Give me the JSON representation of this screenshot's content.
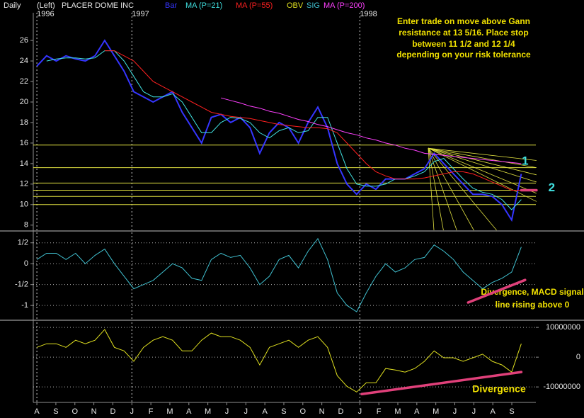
{
  "header": {
    "interval": "Daily",
    "scale": "(Left)",
    "symbol": "PLACER DOME INC"
  },
  "chart_data": [
    {
      "type": "line",
      "x": [
        0,
        0.51,
        1.02,
        1.53,
        2.04,
        2.55,
        3.06,
        3.57,
        4.08,
        4.59,
        5.1,
        5.61,
        6.12,
        6.63,
        7.14,
        7.65,
        8.16,
        8.67,
        9.18,
        9.69,
        10.2,
        10.71,
        11.22,
        11.73,
        12.24,
        12.75,
        13.26,
        13.77,
        14.28,
        14.79,
        15.3,
        15.81,
        16.32,
        16.83,
        17.34,
        17.85,
        18.36,
        18.87,
        19.38,
        19.89,
        20.4,
        20.91,
        21.42,
        21.93,
        22.44,
        22.95,
        23.46,
        23.97,
        24.48,
        24.99,
        25.5
      ],
      "xlim": [
        -0.19,
        28.8
      ],
      "ylim": [
        7.5,
        28.7
      ],
      "yticks": [
        8,
        10,
        12,
        14,
        16,
        18,
        20,
        22,
        24,
        26
      ],
      "year_markers": [
        {
          "value": 0,
          "label": "1996"
        },
        {
          "value": 5,
          "label": "1997"
        },
        {
          "value": 17,
          "label": "1998"
        }
      ],
      "series": [
        {
          "name": "Bar",
          "color": "#3535ff",
          "values": [
            23.5,
            24.5,
            24,
            24.5,
            24.2,
            24,
            24.5,
            26,
            24.5,
            23,
            21,
            20.5,
            20,
            20.5,
            21,
            19,
            17.5,
            16,
            18.5,
            18.8,
            18,
            18.5,
            17.5,
            15,
            17,
            18,
            17.5,
            16,
            18,
            19.5,
            17.5,
            14,
            12,
            11,
            12,
            11.5,
            12.5,
            12.5,
            12.5,
            13,
            13.5,
            15,
            14,
            13,
            12,
            11,
            11,
            10.8,
            10,
            8.5,
            13
          ]
        },
        {
          "name": "MA (P=21)",
          "color": "#40e0e0",
          "values": [
            null,
            24,
            24.2,
            24.3,
            24.3,
            24.2,
            24.3,
            25,
            25,
            24,
            22.5,
            21,
            20.5,
            20.5,
            20.8,
            20,
            18.5,
            17,
            17,
            18,
            18.5,
            18.4,
            18,
            17,
            16.5,
            17.2,
            17.5,
            17,
            17.2,
            18.5,
            18.5,
            16,
            13.5,
            12,
            11.8,
            11.8,
            12,
            12.5,
            12.5,
            12.8,
            13.2,
            14.2,
            14.5,
            13.5,
            12.5,
            11.6,
            11.2,
            11,
            10.5,
            9.5,
            10.5
          ]
        },
        {
          "name": "MA (P=55)",
          "color": "#ff2020",
          "values": [
            null,
            null,
            null,
            null,
            null,
            null,
            null,
            25,
            25,
            24.5,
            24,
            23,
            22,
            21.5,
            21,
            20.5,
            20,
            19.5,
            19,
            18.8,
            18.6,
            18.5,
            18.4,
            18.2,
            18,
            17.8,
            17.7,
            17.6,
            17.5,
            17.5,
            17.4,
            17,
            16,
            15,
            14,
            13.2,
            12.8,
            12.5,
            12.5,
            12.5,
            12.6,
            12.8,
            13,
            13.2,
            13.2,
            13,
            12.6,
            12.2,
            11.8,
            11.4,
            11.4
          ]
        },
        {
          "name": "MA (P=200)",
          "color": "#ff40ff",
          "values": [
            null,
            null,
            null,
            null,
            null,
            null,
            null,
            null,
            null,
            null,
            null,
            null,
            null,
            null,
            null,
            null,
            null,
            null,
            null,
            20.4,
            20.15,
            19.9,
            19.6,
            19.4,
            19.1,
            18.9,
            18.6,
            18.3,
            18.1,
            17.8,
            17.6,
            17.3,
            17.0,
            16.8,
            16.5,
            16.3,
            16.0,
            15.8,
            15.5,
            15.3,
            15.0,
            14.9,
            14.8,
            14.7,
            14.6,
            14.5,
            14.4,
            14.3,
            14.2,
            14.1,
            14.0
          ]
        }
      ],
      "levels": [
        15.8,
        13.6,
        12.1,
        11.4,
        10.8,
        10.0
      ],
      "level_color": "#e0e040",
      "gann_fan": {
        "origin": [
          20.6,
          15.5
        ],
        "color": "#e0e040",
        "ends": [
          [
            26.3,
            14.3
          ],
          [
            26.3,
            13.6
          ],
          [
            26.3,
            12.9
          ],
          [
            26.3,
            12.2
          ],
          [
            26.3,
            11.1
          ],
          [
            26.3,
            10.3
          ],
          [
            24.2,
            7.5
          ],
          [
            23.0,
            7.5
          ],
          [
            22.1,
            7.5
          ],
          [
            21.4,
            7.5
          ],
          [
            20.9,
            7.5
          ]
        ]
      },
      "trends": [
        {
          "from": [
            25.5,
            11.4
          ],
          "to": [
            26.3,
            11.4
          ],
          "color": "#e0407a"
        }
      ],
      "markers": [
        {
          "text": "1",
          "x": 25.7,
          "y": 14.2
        },
        {
          "text": "2",
          "x": 27.1,
          "y": 11.6
        }
      ],
      "marker_color": "#40e0e0",
      "annotations": [
        "Enter trade on move above Gann",
        "resistance at 13 5/16. Place stop",
        "between 11 1/2 and 12 1/4",
        "depending on your risk tolerance"
      ]
    },
    {
      "type": "line",
      "x": [
        0,
        0.51,
        1.02,
        1.53,
        2.04,
        2.55,
        3.06,
        3.57,
        4.08,
        4.59,
        5.1,
        5.61,
        6.12,
        6.63,
        7.14,
        7.65,
        8.16,
        8.67,
        9.18,
        9.69,
        10.2,
        10.71,
        11.22,
        11.73,
        12.24,
        12.75,
        13.26,
        13.77,
        14.28,
        14.79,
        15.3,
        15.81,
        16.32,
        16.83,
        17.34,
        17.85,
        18.36,
        18.87,
        19.38,
        19.89,
        20.4,
        20.91,
        21.42,
        21.93,
        22.44,
        22.95,
        23.46,
        23.97,
        24.48,
        24.99,
        25.5
      ],
      "xlim": [
        -0.19,
        28.8
      ],
      "ylim": [
        -1.32,
        0.75
      ],
      "yticks": [
        {
          "value": 0.5,
          "label": "1/2"
        },
        0,
        {
          "value": -0.5,
          "label": "-1/2"
        },
        -1
      ],
      "grid": true,
      "series": [
        {
          "name": "SIG",
          "color": "#40c0d0",
          "values": [
            0.1,
            0.25,
            0.25,
            0.1,
            0.25,
            0,
            0.2,
            0.35,
            0,
            -0.3,
            -0.6,
            -0.5,
            -0.4,
            -0.2,
            0,
            -0.1,
            -0.35,
            -0.4,
            0.1,
            0.25,
            0.15,
            0.2,
            -0.1,
            -0.5,
            -0.3,
            0.1,
            0.2,
            -0.1,
            0.3,
            0.6,
            0.1,
            -0.7,
            -1,
            -1.15,
            -0.7,
            -0.3,
            0,
            -0.2,
            -0.1,
            0.1,
            0.15,
            0.45,
            0.3,
            0.1,
            -0.2,
            -0.4,
            -0.6,
            -0.45,
            -0.35,
            -0.2,
            0.4
          ]
        }
      ],
      "trends": [
        {
          "from": [
            22.7,
            -0.93
          ],
          "to": [
            25.7,
            -0.39
          ],
          "color": "#e0407a"
        }
      ],
      "annotations": [
        "Divergence, MACD signal",
        "line rising above 0"
      ]
    },
    {
      "type": "line",
      "x": [
        0,
        0.51,
        1.02,
        1.53,
        2.04,
        2.55,
        3.06,
        3.57,
        4.08,
        4.59,
        5.1,
        5.61,
        6.12,
        6.63,
        7.14,
        7.65,
        8.16,
        8.67,
        9.18,
        9.69,
        10.2,
        10.71,
        11.22,
        11.73,
        12.24,
        12.75,
        13.26,
        13.77,
        14.28,
        14.79,
        15.3,
        15.81,
        16.32,
        16.83,
        17.34,
        17.85,
        18.36,
        18.87,
        19.38,
        19.89,
        20.4,
        20.91,
        21.42,
        21.93,
        22.44,
        22.95,
        23.46,
        23.97,
        24.48,
        24.99,
        25.5
      ],
      "xlim": [
        -0.19,
        28.8
      ],
      "ylim": [
        -15200000,
        11700000
      ],
      "yticks": [
        10000000,
        0,
        -10000000
      ],
      "tick_side": "right",
      "grid": true,
      "xticks": [
        {
          "value": 0,
          "label": "A"
        },
        {
          "value": 1,
          "label": "S"
        },
        {
          "value": 2,
          "label": "O"
        },
        {
          "value": 3,
          "label": "N"
        },
        {
          "value": 4,
          "label": "D"
        },
        {
          "value": 5,
          "label": "J"
        },
        {
          "value": 6,
          "label": "F"
        },
        {
          "value": 7,
          "label": "M"
        },
        {
          "value": 8,
          "label": "A"
        },
        {
          "value": 9,
          "label": "M"
        },
        {
          "value": 10,
          "label": "J"
        },
        {
          "value": 11,
          "label": "J"
        },
        {
          "value": 12,
          "label": "A"
        },
        {
          "value": 13,
          "label": "S"
        },
        {
          "value": 14,
          "label": "O"
        },
        {
          "value": 15,
          "label": "N"
        },
        {
          "value": 16,
          "label": "D"
        },
        {
          "value": 17,
          "label": "J"
        },
        {
          "value": 18,
          "label": "F"
        },
        {
          "value": 19,
          "label": "M"
        },
        {
          "value": 20,
          "label": "A"
        },
        {
          "value": 21,
          "label": "M"
        },
        {
          "value": 22,
          "label": "J"
        },
        {
          "value": 23,
          "label": "J"
        },
        {
          "value": 24,
          "label": "A"
        },
        {
          "value": 25,
          "label": "S"
        }
      ],
      "series": [
        {
          "name": "OBV",
          "color": "#e0e020",
          "values": [
            3300000,
            4500000,
            4500000,
            3300000,
            5700000,
            4500000,
            5700000,
            9300000,
            3300000,
            2100000,
            -1400000,
            3300000,
            5700000,
            6900000,
            5700000,
            2100000,
            2100000,
            5700000,
            8100000,
            6900000,
            6900000,
            5700000,
            3300000,
            -2600000,
            3300000,
            4500000,
            5700000,
            3300000,
            5700000,
            6900000,
            3300000,
            -6200000,
            -9800000,
            -11700000,
            -8600000,
            -8600000,
            -3800000,
            -4300000,
            -5000000,
            -3800000,
            -1400000,
            2100000,
            -200000,
            -200000,
            -1400000,
            -200000,
            1000000,
            -1400000,
            -2600000,
            -5000000,
            4500000
          ]
        }
      ],
      "trends": [
        {
          "from": [
            17.1,
            -12400000
          ],
          "to": [
            25.5,
            -5000000
          ],
          "color": "#e0407a"
        }
      ],
      "annotations": [
        "Divergence"
      ]
    }
  ]
}
